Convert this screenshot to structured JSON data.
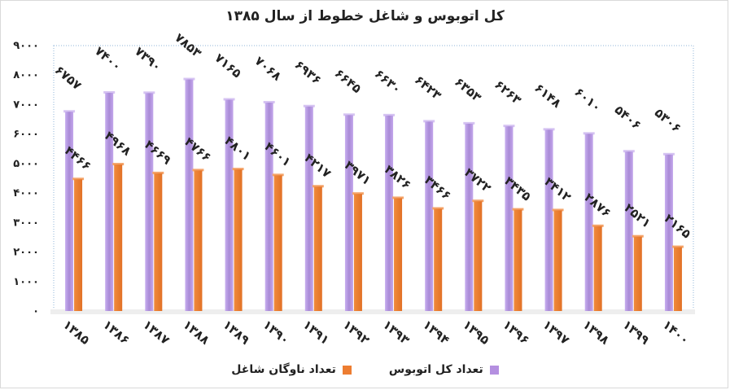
{
  "chart_data": {
    "type": "bar",
    "title": "کل اتوبوس و شاغل خطوط از سال ۱۳۸۵",
    "categories": [
      "۱۳۸۵",
      "۱۳۸۶",
      "۱۳۸۷",
      "۱۳۸۸",
      "۱۳۸۹",
      "۱۳۹۰",
      "۱۳۹۱",
      "۱۳۹۲",
      "۱۳۹۳",
      "۱۳۹۴",
      "۱۳۹۵",
      "۱۳۹۶",
      "۱۳۹۷",
      "۱۳۹۸",
      "۱۳۹۹",
      "۱۴۰۰"
    ],
    "series": [
      {
        "name": "تعداد کل اتوبوس",
        "color": "#b48fe0",
        "values": [
          6757,
          7400,
          7390,
          7853,
          7165,
          7068,
          6936,
          6645,
          6630,
          6423,
          6353,
          6263,
          6148,
          6010,
          5406,
          5306
        ],
        "labels": [
          "۶۷۵۷",
          "۷۴۰۰",
          "۷۳۹۰",
          "۷۸۵۳",
          "۷۱۶۵",
          "۷۰۶۸",
          "۶۹۳۶",
          "۶۶۴۵",
          "۶۶۳۰",
          "۶۴۲۳",
          "۶۳۵۳",
          "۶۲۶۳",
          "۶۱۴۸",
          "۶۰۱۰",
          "۵۴۰۶",
          "۵۳۰۶"
        ]
      },
      {
        "name": "تعداد ناوگان شاغل",
        "color": "#ed7d31",
        "values": [
          4466,
          4968,
          4669,
          4766,
          4801,
          4601,
          4217,
          3971,
          3826,
          3466,
          3722,
          3435,
          3412,
          2876,
          2521,
          2165
        ],
        "labels": [
          "۴۴۶۶",
          "۴۹۶۸",
          "۴۶۶۹",
          "۴۷۶۶",
          "۴۸۰۱",
          "۴۶۰۱",
          "۴۲۱۷",
          "۳۹۷۱",
          "۳۸۲۶",
          "۳۴۶۶",
          "۳۷۲۲",
          "۳۴۳۵",
          "۳۴۱۲",
          "۲۸۷۶",
          "۲۵۲۱",
          "۲۱۶۵"
        ]
      }
    ],
    "yticks": [
      0,
      1000,
      2000,
      3000,
      4000,
      5000,
      6000,
      7000,
      8000,
      9000
    ],
    "ytick_labels": [
      "۰",
      "۱۰۰۰",
      "۲۰۰۰",
      "۳۰۰۰",
      "۴۰۰۰",
      "۵۰۰۰",
      "۶۰۰۰",
      "۷۰۰۰",
      "۸۰۰۰",
      "۹۰۰۰"
    ],
    "ylim": [
      0,
      9000
    ],
    "grid": false,
    "legend_position": "bottom"
  }
}
